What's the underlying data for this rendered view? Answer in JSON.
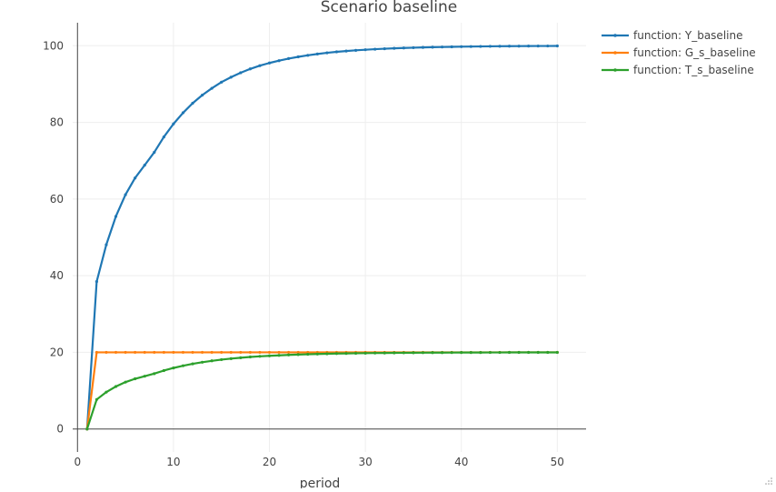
{
  "chart_data": {
    "type": "line",
    "title": "Scenario  baseline",
    "xlabel": "period",
    "ylabel": "",
    "xlim": [
      -0.5,
      53
    ],
    "ylim": [
      -6,
      106
    ],
    "x_ticks": [
      0,
      10,
      20,
      30,
      40,
      50
    ],
    "y_ticks": [
      0,
      20,
      40,
      60,
      80,
      100
    ],
    "x_tick_labels": [
      "0",
      "10",
      "20",
      "30",
      "40",
      "50"
    ],
    "y_tick_labels": [
      "0",
      "20",
      "40",
      "60",
      "80",
      "100"
    ],
    "grid": true,
    "legend_position": "top-right",
    "x": [
      1,
      2,
      3,
      4,
      5,
      6,
      7,
      8,
      9,
      10,
      11,
      12,
      13,
      14,
      15,
      16,
      17,
      18,
      19,
      20,
      21,
      22,
      23,
      24,
      25,
      26,
      27,
      28,
      29,
      30,
      31,
      32,
      33,
      34,
      35,
      36,
      37,
      38,
      39,
      40,
      41,
      42,
      43,
      44,
      45,
      46,
      47,
      48,
      49,
      50
    ],
    "series": [
      {
        "name": "function:  Y_baseline",
        "color": "#1f77b4",
        "values": [
          0,
          38.46,
          48.08,
          55.47,
          61.13,
          65.49,
          68.83,
          72.2,
          76.2,
          79.6,
          82.5,
          85.0,
          87.1,
          88.9,
          90.5,
          91.8,
          92.95,
          93.95,
          94.8,
          95.5,
          96.1,
          96.65,
          97.1,
          97.5,
          97.85,
          98.15,
          98.4,
          98.62,
          98.8,
          98.96,
          99.1,
          99.22,
          99.32,
          99.41,
          99.49,
          99.56,
          99.62,
          99.67,
          99.72,
          99.76,
          99.79,
          99.82,
          99.85,
          99.87,
          99.89,
          99.9,
          99.92,
          99.93,
          99.94,
          99.95
        ]
      },
      {
        "name": "function:  G_s_baseline",
        "color": "#ff7f0e",
        "values": [
          0,
          20,
          20,
          20,
          20,
          20,
          20,
          20,
          20,
          20,
          20,
          20,
          20,
          20,
          20,
          20,
          20,
          20,
          20,
          20,
          20,
          20,
          20,
          20,
          20,
          20,
          20,
          20,
          20,
          20,
          20,
          20,
          20,
          20,
          20,
          20,
          20,
          20,
          20,
          20,
          20,
          20,
          20,
          20,
          20,
          20,
          20,
          20,
          20,
          20
        ]
      },
      {
        "name": "function:  T_s_baseline",
        "color": "#2ca02c",
        "values": [
          0,
          7.69,
          9.62,
          11.09,
          12.23,
          13.1,
          13.77,
          14.44,
          15.24,
          15.92,
          16.5,
          17.0,
          17.42,
          17.78,
          18.1,
          18.36,
          18.59,
          18.79,
          18.96,
          19.1,
          19.22,
          19.33,
          19.42,
          19.5,
          19.57,
          19.63,
          19.68,
          19.72,
          19.76,
          19.79,
          19.82,
          19.84,
          19.86,
          19.88,
          19.9,
          19.91,
          19.92,
          19.93,
          19.94,
          19.95,
          19.96,
          19.96,
          19.97,
          19.97,
          19.98,
          19.98,
          19.98,
          19.99,
          19.99,
          19.99
        ]
      }
    ]
  }
}
